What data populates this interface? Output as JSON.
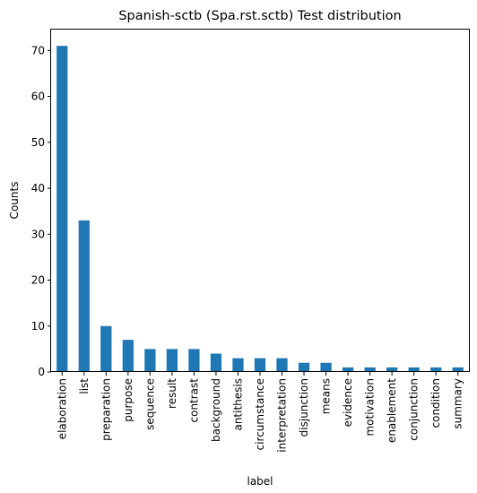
{
  "chart_data": {
    "type": "bar",
    "title": "Spanish-sctb (Spa.rst.sctb) Test distribution",
    "xlabel": "label",
    "ylabel": "Counts",
    "categories": [
      "elaboration",
      "list",
      "preparation",
      "purpose",
      "sequence",
      "result",
      "contrast",
      "background",
      "antithesis",
      "circumstance",
      "interpretation",
      "disjunction",
      "means",
      "evidence",
      "motivation",
      "enablement",
      "conjunction",
      "condition",
      "summary"
    ],
    "values": [
      71,
      33,
      10,
      7,
      5,
      5,
      5,
      4,
      3,
      3,
      3,
      2,
      2,
      1,
      1,
      1,
      1,
      1,
      1
    ],
    "ylim": [
      0,
      74.55
    ],
    "yticks": [
      0,
      10,
      20,
      30,
      40,
      50,
      60,
      70
    ],
    "ytick_labels": [
      "0",
      "10",
      "20",
      "30",
      "40",
      "50",
      "60",
      "70"
    ],
    "color": "#1f77b4",
    "grid": false,
    "legend": false
  }
}
